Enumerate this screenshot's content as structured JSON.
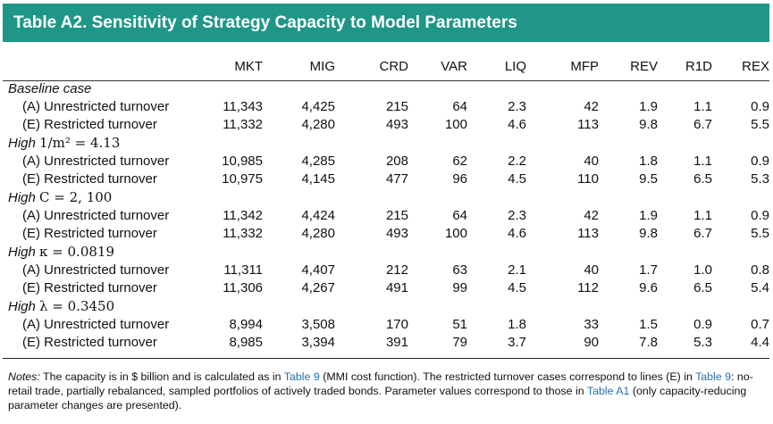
{
  "title": "Table A2.  Sensitivity of Strategy Capacity to Model Parameters",
  "columns": [
    "MKT",
    "MIG",
    "CRD",
    "VAR",
    "LIQ",
    "MFP",
    "REV",
    "R1D",
    "REX"
  ],
  "groups": [
    {
      "label_prefix": "Baseline case",
      "label_math": "",
      "rows": [
        {
          "label": "(A) Unrestricted turnover",
          "values": [
            "11,343",
            "4,425",
            "215",
            "64",
            "2.3",
            "42",
            "1.9",
            "1.1",
            "0.9"
          ]
        },
        {
          "label": "(E) Restricted turnover",
          "values": [
            "11,332",
            "4,280",
            "493",
            "100",
            "4.6",
            "113",
            "9.8",
            "6.7",
            "5.5"
          ]
        }
      ]
    },
    {
      "label_prefix": "High",
      "label_math": "1/m² = 4.13",
      "rows": [
        {
          "label": "(A) Unrestricted turnover",
          "values": [
            "10,985",
            "4,285",
            "208",
            "62",
            "2.2",
            "40",
            "1.8",
            "1.1",
            "0.9"
          ]
        },
        {
          "label": "(E) Restricted turnover",
          "values": [
            "10,975",
            "4,145",
            "477",
            "96",
            "4.5",
            "110",
            "9.5",
            "6.5",
            "5.3"
          ]
        }
      ]
    },
    {
      "label_prefix": "High",
      "label_math": "C = 2, 100",
      "rows": [
        {
          "label": "(A) Unrestricted turnover",
          "values": [
            "11,342",
            "4,424",
            "215",
            "64",
            "2.3",
            "42",
            "1.9",
            "1.1",
            "0.9"
          ]
        },
        {
          "label": "(E) Restricted turnover",
          "values": [
            "11,332",
            "4,280",
            "493",
            "100",
            "4.6",
            "113",
            "9.8",
            "6.7",
            "5.5"
          ]
        }
      ]
    },
    {
      "label_prefix": "High",
      "label_math": "κ = 0.0819",
      "rows": [
        {
          "label": "(A) Unrestricted turnover",
          "values": [
            "11,311",
            "4,407",
            "212",
            "63",
            "2.1",
            "40",
            "1.7",
            "1.0",
            "0.8"
          ]
        },
        {
          "label": "(E) Restricted turnover",
          "values": [
            "11,306",
            "4,267",
            "491",
            "99",
            "4.5",
            "112",
            "9.6",
            "6.5",
            "5.4"
          ]
        }
      ]
    },
    {
      "label_prefix": "High",
      "label_math": "λ = 0.3450",
      "rows": [
        {
          "label": "(A) Unrestricted turnover",
          "values": [
            "8,994",
            "3,508",
            "170",
            "51",
            "1.8",
            "33",
            "1.5",
            "0.9",
            "0.7"
          ]
        },
        {
          "label": "(E) Restricted turnover",
          "values": [
            "8,985",
            "3,394",
            "391",
            "79",
            "3.7",
            "90",
            "7.8",
            "5.3",
            "4.4"
          ]
        }
      ]
    }
  ],
  "notes": {
    "lead": "Notes:",
    "t1": " The capacity is in $ billion and is calculated as in ",
    "ref1": "Table 9",
    "t2": " (MMI cost function). The restricted turnover cases correspond to lines (E) in ",
    "ref2": "Table 9",
    "t3": ": no-retail trade, partially rebalanced, sampled portfolios of actively traded bonds. Parameter values correspond to those in ",
    "ref3": "Table A1",
    "t4": " (only capacity-reducing parameter changes are presented)."
  },
  "colors": {
    "title_bg": "#1f9688",
    "title_text": "#ffffff",
    "link": "#2a6fb0"
  }
}
